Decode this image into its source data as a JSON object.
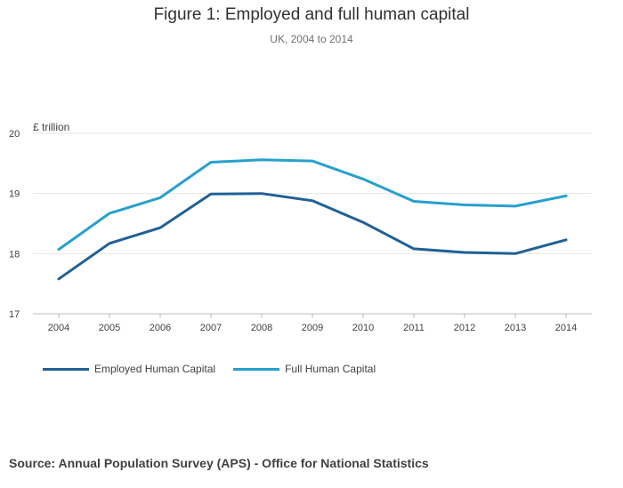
{
  "title": "Figure 1: Employed and full human capital",
  "subtitle": "UK, 2004 to 2014",
  "source": "Source: Annual Population Survey (APS) - Office for National Statistics",
  "colors": {
    "employed": "#206095",
    "full": "#27a0cc",
    "grid": "#e6e6e6",
    "axis": "#bcbcbc"
  },
  "chart_data": {
    "type": "line",
    "title": "Figure 1: Employed and full human capital",
    "subtitle": "UK, 2004 to 2014",
    "ylabel": "£ trillion",
    "xlabel": "",
    "categories": [
      "2004",
      "2005",
      "2006",
      "2007",
      "2008",
      "2009",
      "2010",
      "2011",
      "2012",
      "2013",
      "2014"
    ],
    "ylim": [
      17,
      20
    ],
    "yticks": [
      17,
      18,
      19,
      20
    ],
    "grid": true,
    "legend_position": "bottom",
    "series": [
      {
        "name": "Employed Human Capital",
        "color": "#206095",
        "values": [
          17.58,
          18.17,
          18.43,
          18.99,
          19.0,
          18.88,
          18.52,
          18.08,
          18.02,
          18.0,
          18.23
        ]
      },
      {
        "name": "Full Human Capital",
        "color": "#27a0cc",
        "values": [
          18.07,
          18.67,
          18.93,
          19.52,
          19.56,
          19.54,
          19.24,
          18.87,
          18.81,
          18.79,
          18.96
        ]
      }
    ]
  }
}
